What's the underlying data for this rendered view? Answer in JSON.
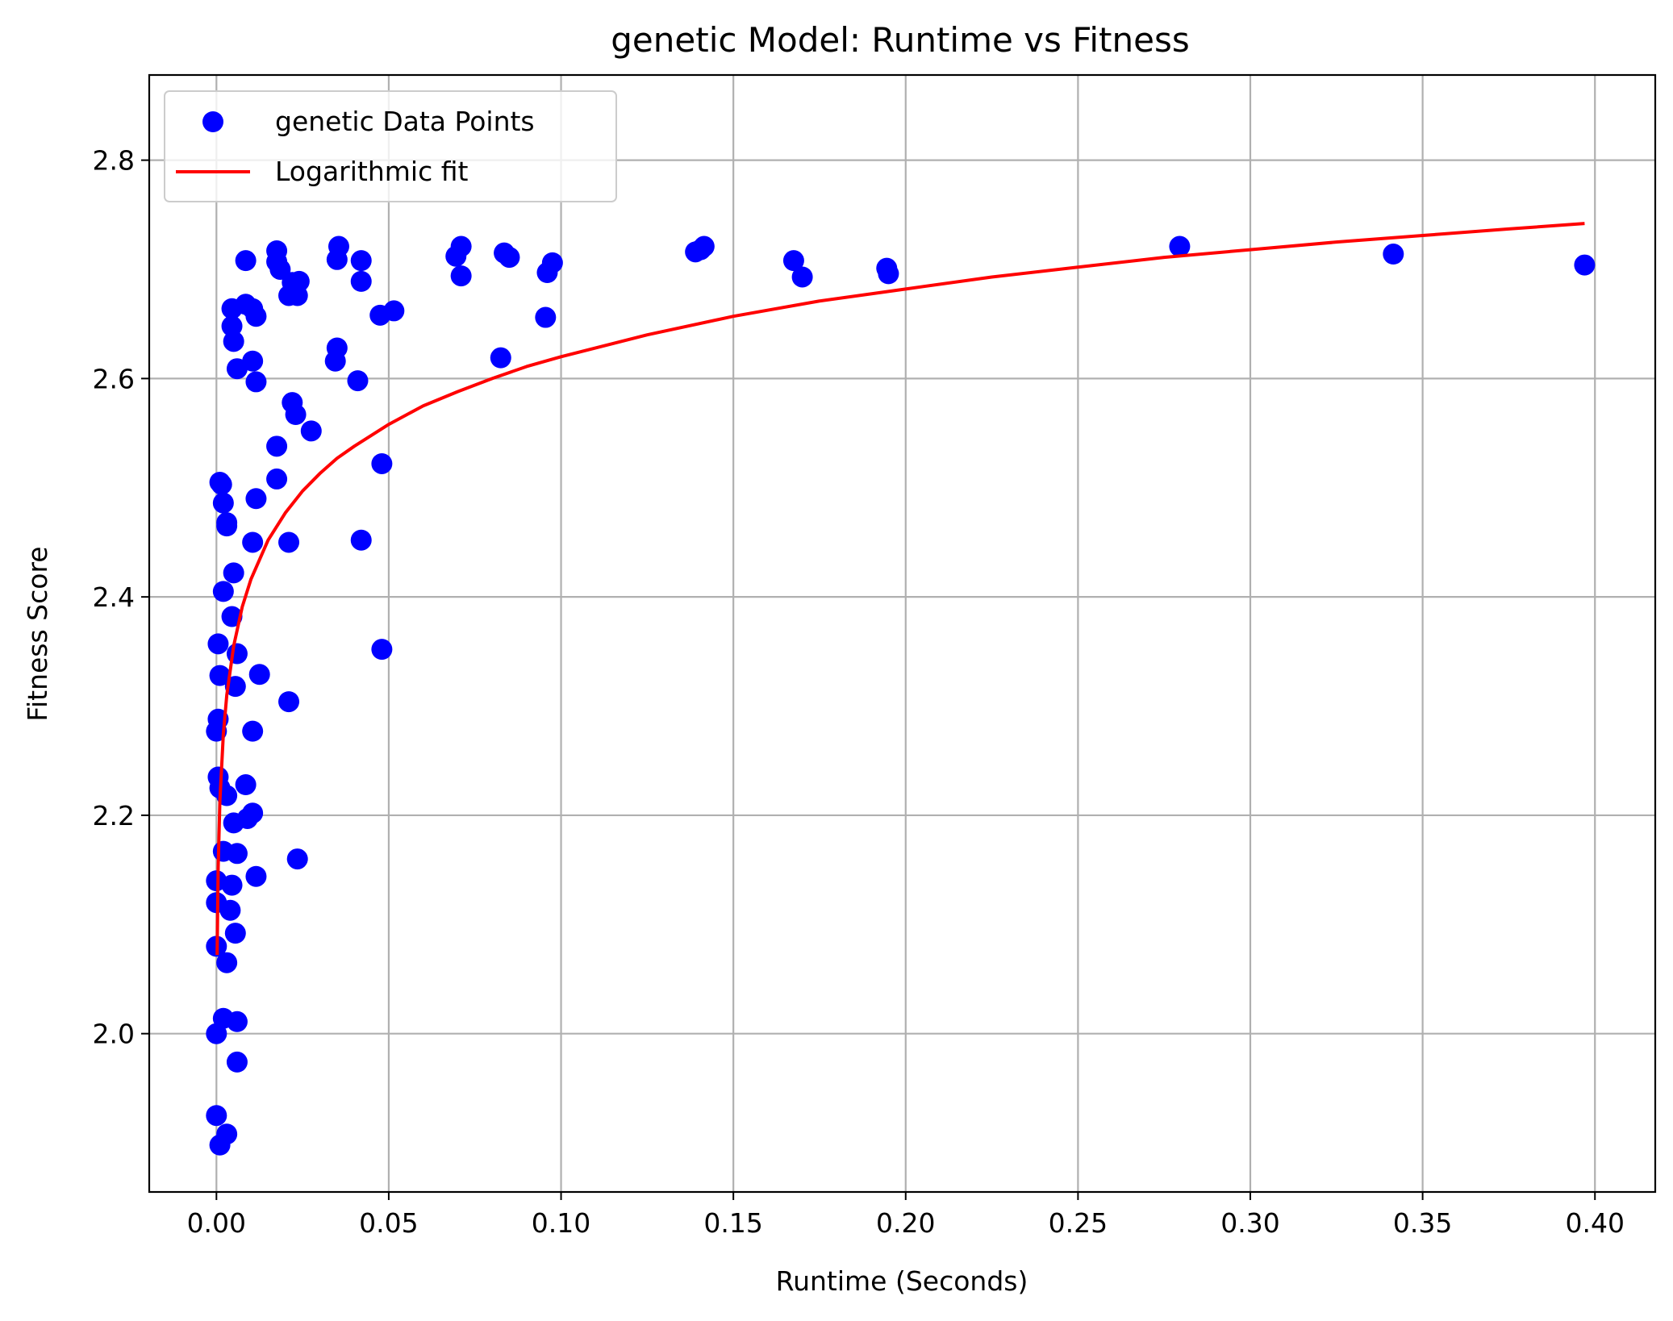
{
  "chart_data": {
    "type": "scatter",
    "title": "genetic Model: Runtime vs Fitness",
    "xlabel": "Runtime (Seconds)",
    "ylabel": "Fitness Score",
    "xlim": [
      -0.0195,
      0.4175
    ],
    "ylim": [
      1.855,
      2.878
    ],
    "x_ticks": [
      0.0,
      0.05,
      0.1,
      0.15,
      0.2,
      0.25,
      0.3,
      0.35,
      0.4
    ],
    "x_tick_labels": [
      "0.00",
      "0.05",
      "0.10",
      "0.15",
      "0.20",
      "0.25",
      "0.30",
      "0.35",
      "0.40"
    ],
    "y_ticks": [
      2.0,
      2.2,
      2.4,
      2.6,
      2.8
    ],
    "y_tick_labels": [
      "2.0",
      "2.2",
      "2.4",
      "2.6",
      "2.8"
    ],
    "grid": true,
    "legend_position": "upper-left",
    "series": [
      {
        "name": "genetic Data Points",
        "kind": "scatter",
        "color": "#0000ff",
        "points": [
          [
            0.0,
            2.0
          ],
          [
            0.0,
            2.08
          ],
          [
            0.0,
            2.14
          ],
          [
            0.0,
            2.12
          ],
          [
            0.0,
            1.925
          ],
          [
            0.001,
            1.898
          ],
          [
            0.003,
            1.908
          ],
          [
            0.002,
            2.014
          ],
          [
            0.003,
            2.065
          ],
          [
            0.006,
            2.011
          ],
          [
            0.006,
            1.974
          ],
          [
            0.0055,
            2.092
          ],
          [
            0.004,
            2.113
          ],
          [
            0.0045,
            2.136
          ],
          [
            0.006,
            2.165
          ],
          [
            0.002,
            2.167
          ],
          [
            0.005,
            2.193
          ],
          [
            0.003,
            2.218
          ],
          [
            0.001,
            2.225
          ],
          [
            0.0005,
            2.235
          ],
          [
            0.0,
            2.277
          ],
          [
            0.0005,
            2.288
          ],
          [
            0.001,
            2.328
          ],
          [
            0.0005,
            2.357
          ],
          [
            0.0055,
            2.318
          ],
          [
            0.006,
            2.348
          ],
          [
            0.0045,
            2.382
          ],
          [
            0.002,
            2.405
          ],
          [
            0.005,
            2.422
          ],
          [
            0.003,
            2.465
          ],
          [
            0.003,
            2.468
          ],
          [
            0.002,
            2.486
          ],
          [
            0.0015,
            2.503
          ],
          [
            0.001,
            2.505
          ],
          [
            0.009,
            2.197
          ],
          [
            0.0085,
            2.228
          ],
          [
            0.0105,
            2.202
          ],
          [
            0.0105,
            2.277
          ],
          [
            0.0115,
            2.144
          ],
          [
            0.0125,
            2.329
          ],
          [
            0.0105,
            2.45
          ],
          [
            0.0115,
            2.49
          ],
          [
            0.0175,
            2.508
          ],
          [
            0.0175,
            2.538
          ],
          [
            0.021,
            2.45
          ],
          [
            0.021,
            2.304
          ],
          [
            0.0235,
            2.16
          ],
          [
            0.022,
            2.578
          ],
          [
            0.023,
            2.567
          ],
          [
            0.0275,
            2.552
          ],
          [
            0.006,
            2.609
          ],
          [
            0.0115,
            2.597
          ],
          [
            0.0105,
            2.616
          ],
          [
            0.005,
            2.634
          ],
          [
            0.0045,
            2.648
          ],
          [
            0.0045,
            2.664
          ],
          [
            0.0085,
            2.668
          ],
          [
            0.0105,
            2.664
          ],
          [
            0.0115,
            2.657
          ],
          [
            0.0085,
            2.708
          ],
          [
            0.0175,
            2.717
          ],
          [
            0.0175,
            2.707
          ],
          [
            0.0185,
            2.7
          ],
          [
            0.021,
            2.676
          ],
          [
            0.0235,
            2.676
          ],
          [
            0.022,
            2.688
          ],
          [
            0.024,
            2.689
          ],
          [
            0.0345,
            2.616
          ],
          [
            0.035,
            2.628
          ],
          [
            0.041,
            2.598
          ],
          [
            0.035,
            2.709
          ],
          [
            0.0355,
            2.721
          ],
          [
            0.042,
            2.708
          ],
          [
            0.042,
            2.689
          ],
          [
            0.0475,
            2.658
          ],
          [
            0.0515,
            2.662
          ],
          [
            0.048,
            2.522
          ],
          [
            0.042,
            2.452
          ],
          [
            0.048,
            2.352
          ],
          [
            0.0825,
            2.619
          ],
          [
            0.0695,
            2.712
          ],
          [
            0.071,
            2.721
          ],
          [
            0.071,
            2.694
          ],
          [
            0.0835,
            2.715
          ],
          [
            0.085,
            2.711
          ],
          [
            0.0955,
            2.656
          ],
          [
            0.096,
            2.697
          ],
          [
            0.0975,
            2.706
          ],
          [
            0.139,
            2.716
          ],
          [
            0.1405,
            2.718
          ],
          [
            0.1415,
            2.721
          ],
          [
            0.1675,
            2.708
          ],
          [
            0.17,
            2.693
          ],
          [
            0.1945,
            2.701
          ],
          [
            0.195,
            2.696
          ],
          [
            0.2795,
            2.721
          ],
          [
            0.3415,
            2.714
          ],
          [
            0.397,
            2.704
          ]
        ]
      },
      {
        "name": "Logarithmic fit",
        "kind": "line",
        "color": "#ff0000",
        "points": [
          [
            0.0002,
            2.072
          ],
          [
            0.0005,
            2.152
          ],
          [
            0.001,
            2.213
          ],
          [
            0.002,
            2.274
          ],
          [
            0.003,
            2.31
          ],
          [
            0.005,
            2.355
          ],
          [
            0.0075,
            2.391
          ],
          [
            0.01,
            2.416
          ],
          [
            0.015,
            2.452
          ],
          [
            0.02,
            2.477
          ],
          [
            0.025,
            2.497
          ],
          [
            0.03,
            2.513
          ],
          [
            0.035,
            2.527
          ],
          [
            0.04,
            2.538
          ],
          [
            0.05,
            2.558
          ],
          [
            0.06,
            2.575
          ],
          [
            0.07,
            2.588
          ],
          [
            0.08,
            2.6
          ],
          [
            0.09,
            2.611
          ],
          [
            0.1,
            2.62
          ],
          [
            0.125,
            2.64
          ],
          [
            0.15,
            2.657
          ],
          [
            0.175,
            2.671
          ],
          [
            0.2,
            2.682
          ],
          [
            0.225,
            2.693
          ],
          [
            0.25,
            2.702
          ],
          [
            0.275,
            2.711
          ],
          [
            0.3,
            2.718
          ],
          [
            0.325,
            2.725
          ],
          [
            0.35,
            2.731
          ],
          [
            0.375,
            2.737
          ],
          [
            0.397,
            2.742
          ]
        ]
      }
    ]
  }
}
